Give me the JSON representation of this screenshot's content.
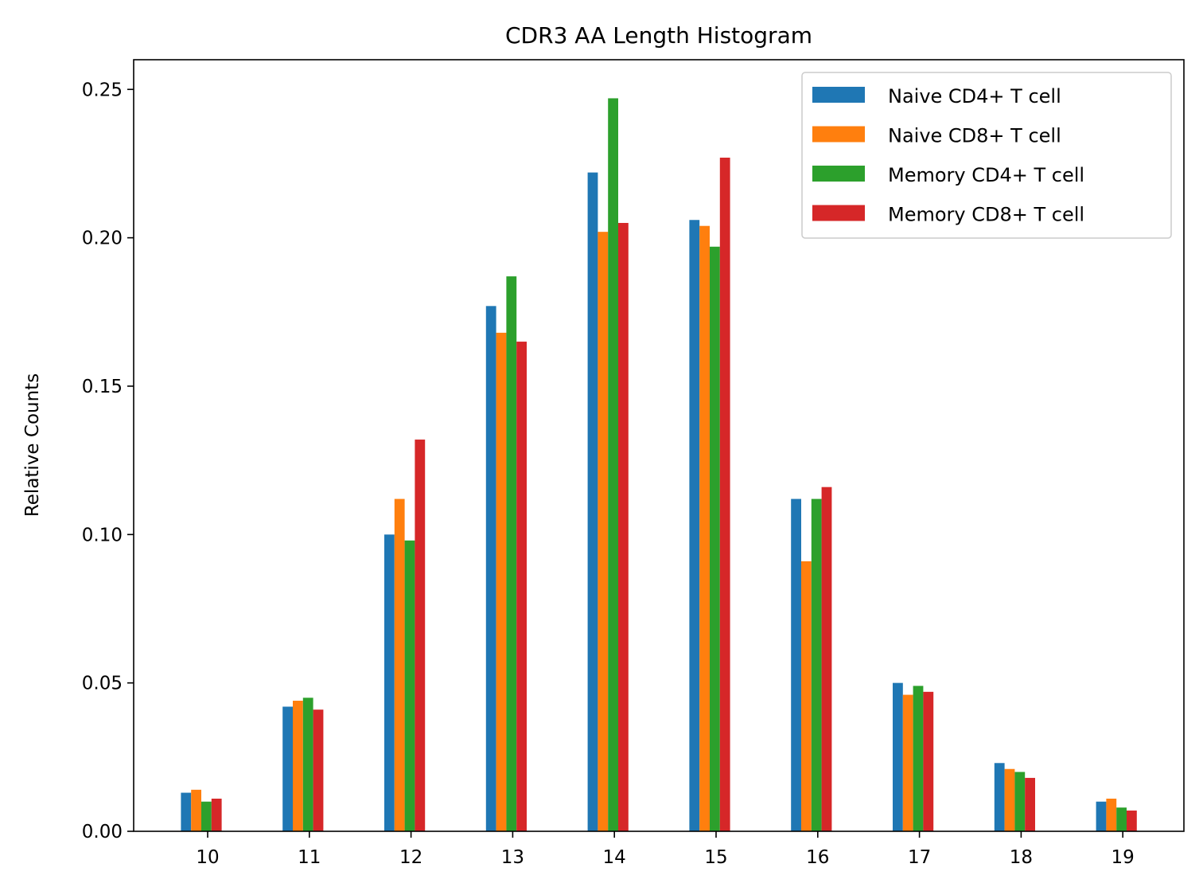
{
  "chart_data": {
    "type": "bar",
    "title": "CDR3 AA Length Histogram",
    "xlabel": "",
    "ylabel": "Relative Counts",
    "categories": [
      "10",
      "11",
      "12",
      "13",
      "14",
      "15",
      "16",
      "17",
      "18",
      "19"
    ],
    "ylim": [
      0,
      0.26
    ],
    "yticks": [
      0.0,
      0.05,
      0.1,
      0.15,
      0.2,
      0.25
    ],
    "ytick_labels": [
      "0.00",
      "0.05",
      "0.10",
      "0.15",
      "0.20",
      "0.25"
    ],
    "grid": false,
    "legend_position": "upper-right",
    "series": [
      {
        "name": "Naive CD4+ T cell",
        "color": "#1f77b4",
        "values": [
          0.013,
          0.042,
          0.1,
          0.177,
          0.222,
          0.206,
          0.112,
          0.05,
          0.023,
          0.01
        ]
      },
      {
        "name": "Naive CD8+ T cell",
        "color": "#ff7f0e",
        "values": [
          0.014,
          0.044,
          0.112,
          0.168,
          0.202,
          0.204,
          0.091,
          0.046,
          0.021,
          0.011
        ]
      },
      {
        "name": "Memory CD4+ T cell",
        "color": "#2ca02c",
        "values": [
          0.01,
          0.045,
          0.098,
          0.187,
          0.247,
          0.197,
          0.112,
          0.049,
          0.02,
          0.008
        ]
      },
      {
        "name": "Memory CD8+ T cell",
        "color": "#d62728",
        "values": [
          0.011,
          0.041,
          0.132,
          0.165,
          0.205,
          0.227,
          0.116,
          0.047,
          0.018,
          0.007
        ]
      }
    ]
  }
}
